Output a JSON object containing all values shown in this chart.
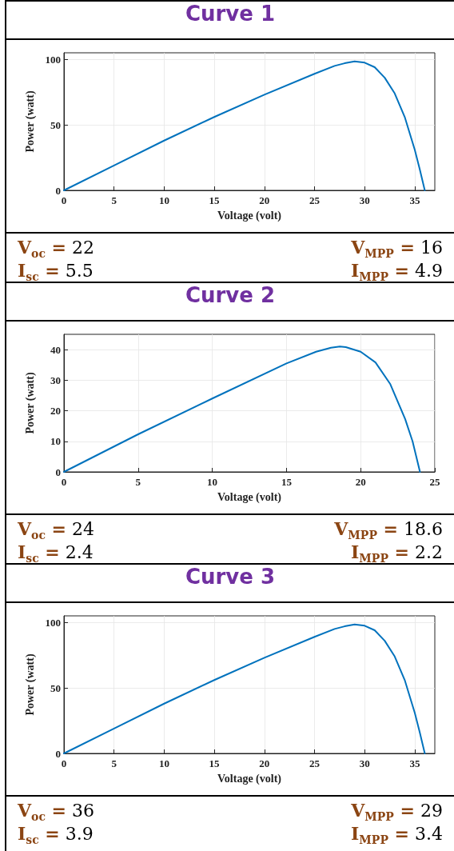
{
  "chart_data": [
    {
      "type": "line",
      "title": "Curve 1",
      "xlabel": "Voltage (volt)",
      "ylabel": "Power (watt)",
      "xlim": [
        0,
        37
      ],
      "xticks": [
        0,
        5,
        10,
        15,
        20,
        25,
        30,
        35
      ],
      "ylim": [
        0,
        105
      ],
      "yticks": [
        0,
        50,
        100
      ],
      "grid": true,
      "marker": "none",
      "line_style": "solid",
      "series": [
        {
          "color": "#0072bd",
          "x": [
            0,
            5,
            10,
            15,
            20,
            25,
            27,
            28,
            29,
            30,
            31,
            32,
            33,
            34,
            35,
            35.5,
            36
          ],
          "values": [
            0,
            19,
            38,
            56,
            73,
            89,
            95,
            97,
            98.5,
            97.5,
            94,
            86,
            74,
            56,
            31,
            16,
            0
          ]
        }
      ],
      "annotations": [
        "V$_{oc}$ = 22",
        "I$_{sc}$ = 5.5",
        "V$_{MPP}$ = 16",
        "I$_{MPP}$ = 4.9"
      ]
    },
    {
      "type": "line",
      "title": "Curve 2",
      "xlabel": "Voltage (volt)",
      "ylabel": "Power (watt)",
      "xlim": [
        0,
        25
      ],
      "xticks": [
        0,
        5,
        10,
        15,
        20,
        25
      ],
      "ylim": [
        0,
        45
      ],
      "yticks": [
        0,
        10,
        20,
        30,
        40
      ],
      "grid": true,
      "marker": "none",
      "line_style": "solid",
      "series": [
        {
          "color": "#0072bd",
          "x": [
            0,
            5,
            10,
            15,
            17,
            18,
            18.6,
            19,
            20,
            21,
            22,
            23,
            23.5,
            24
          ],
          "values": [
            0,
            12.3,
            24,
            35.5,
            39.3,
            40.6,
            41,
            40.8,
            39.3,
            35.8,
            28.7,
            17.3,
            10,
            0
          ]
        }
      ],
      "annotations": [
        "V$_{oc}$ = 24",
        "I$_{sc}$ = 2.4",
        "V$_{MPP}$ = 18.6",
        "I$_{MPP}$ = 2.2"
      ]
    },
    {
      "type": "line",
      "title": "Curve 3",
      "xlabel": "Voltage (volt)",
      "ylabel": "Power (watt)",
      "xlim": [
        0,
        37
      ],
      "xticks": [
        0,
        5,
        10,
        15,
        20,
        25,
        30,
        35
      ],
      "ylim": [
        0,
        105
      ],
      "yticks": [
        0,
        50,
        100
      ],
      "grid": true,
      "marker": "none",
      "line_style": "solid",
      "series": [
        {
          "color": "#0072bd",
          "x": [
            0,
            5,
            10,
            15,
            20,
            25,
            27,
            28,
            29,
            30,
            31,
            32,
            33,
            34,
            35,
            35.5,
            36
          ],
          "values": [
            0,
            19,
            38,
            56,
            73,
            89,
            95,
            97,
            98.5,
            97.5,
            94,
            86,
            74,
            56,
            31,
            16,
            0
          ]
        }
      ],
      "annotations": [
        "V$_{oc}$ = 36",
        "I$_{sc}$ = 3.9",
        "V$_{MPP}$ = 29",
        "I$_{MPP}$ = 3.4"
      ]
    }
  ]
}
